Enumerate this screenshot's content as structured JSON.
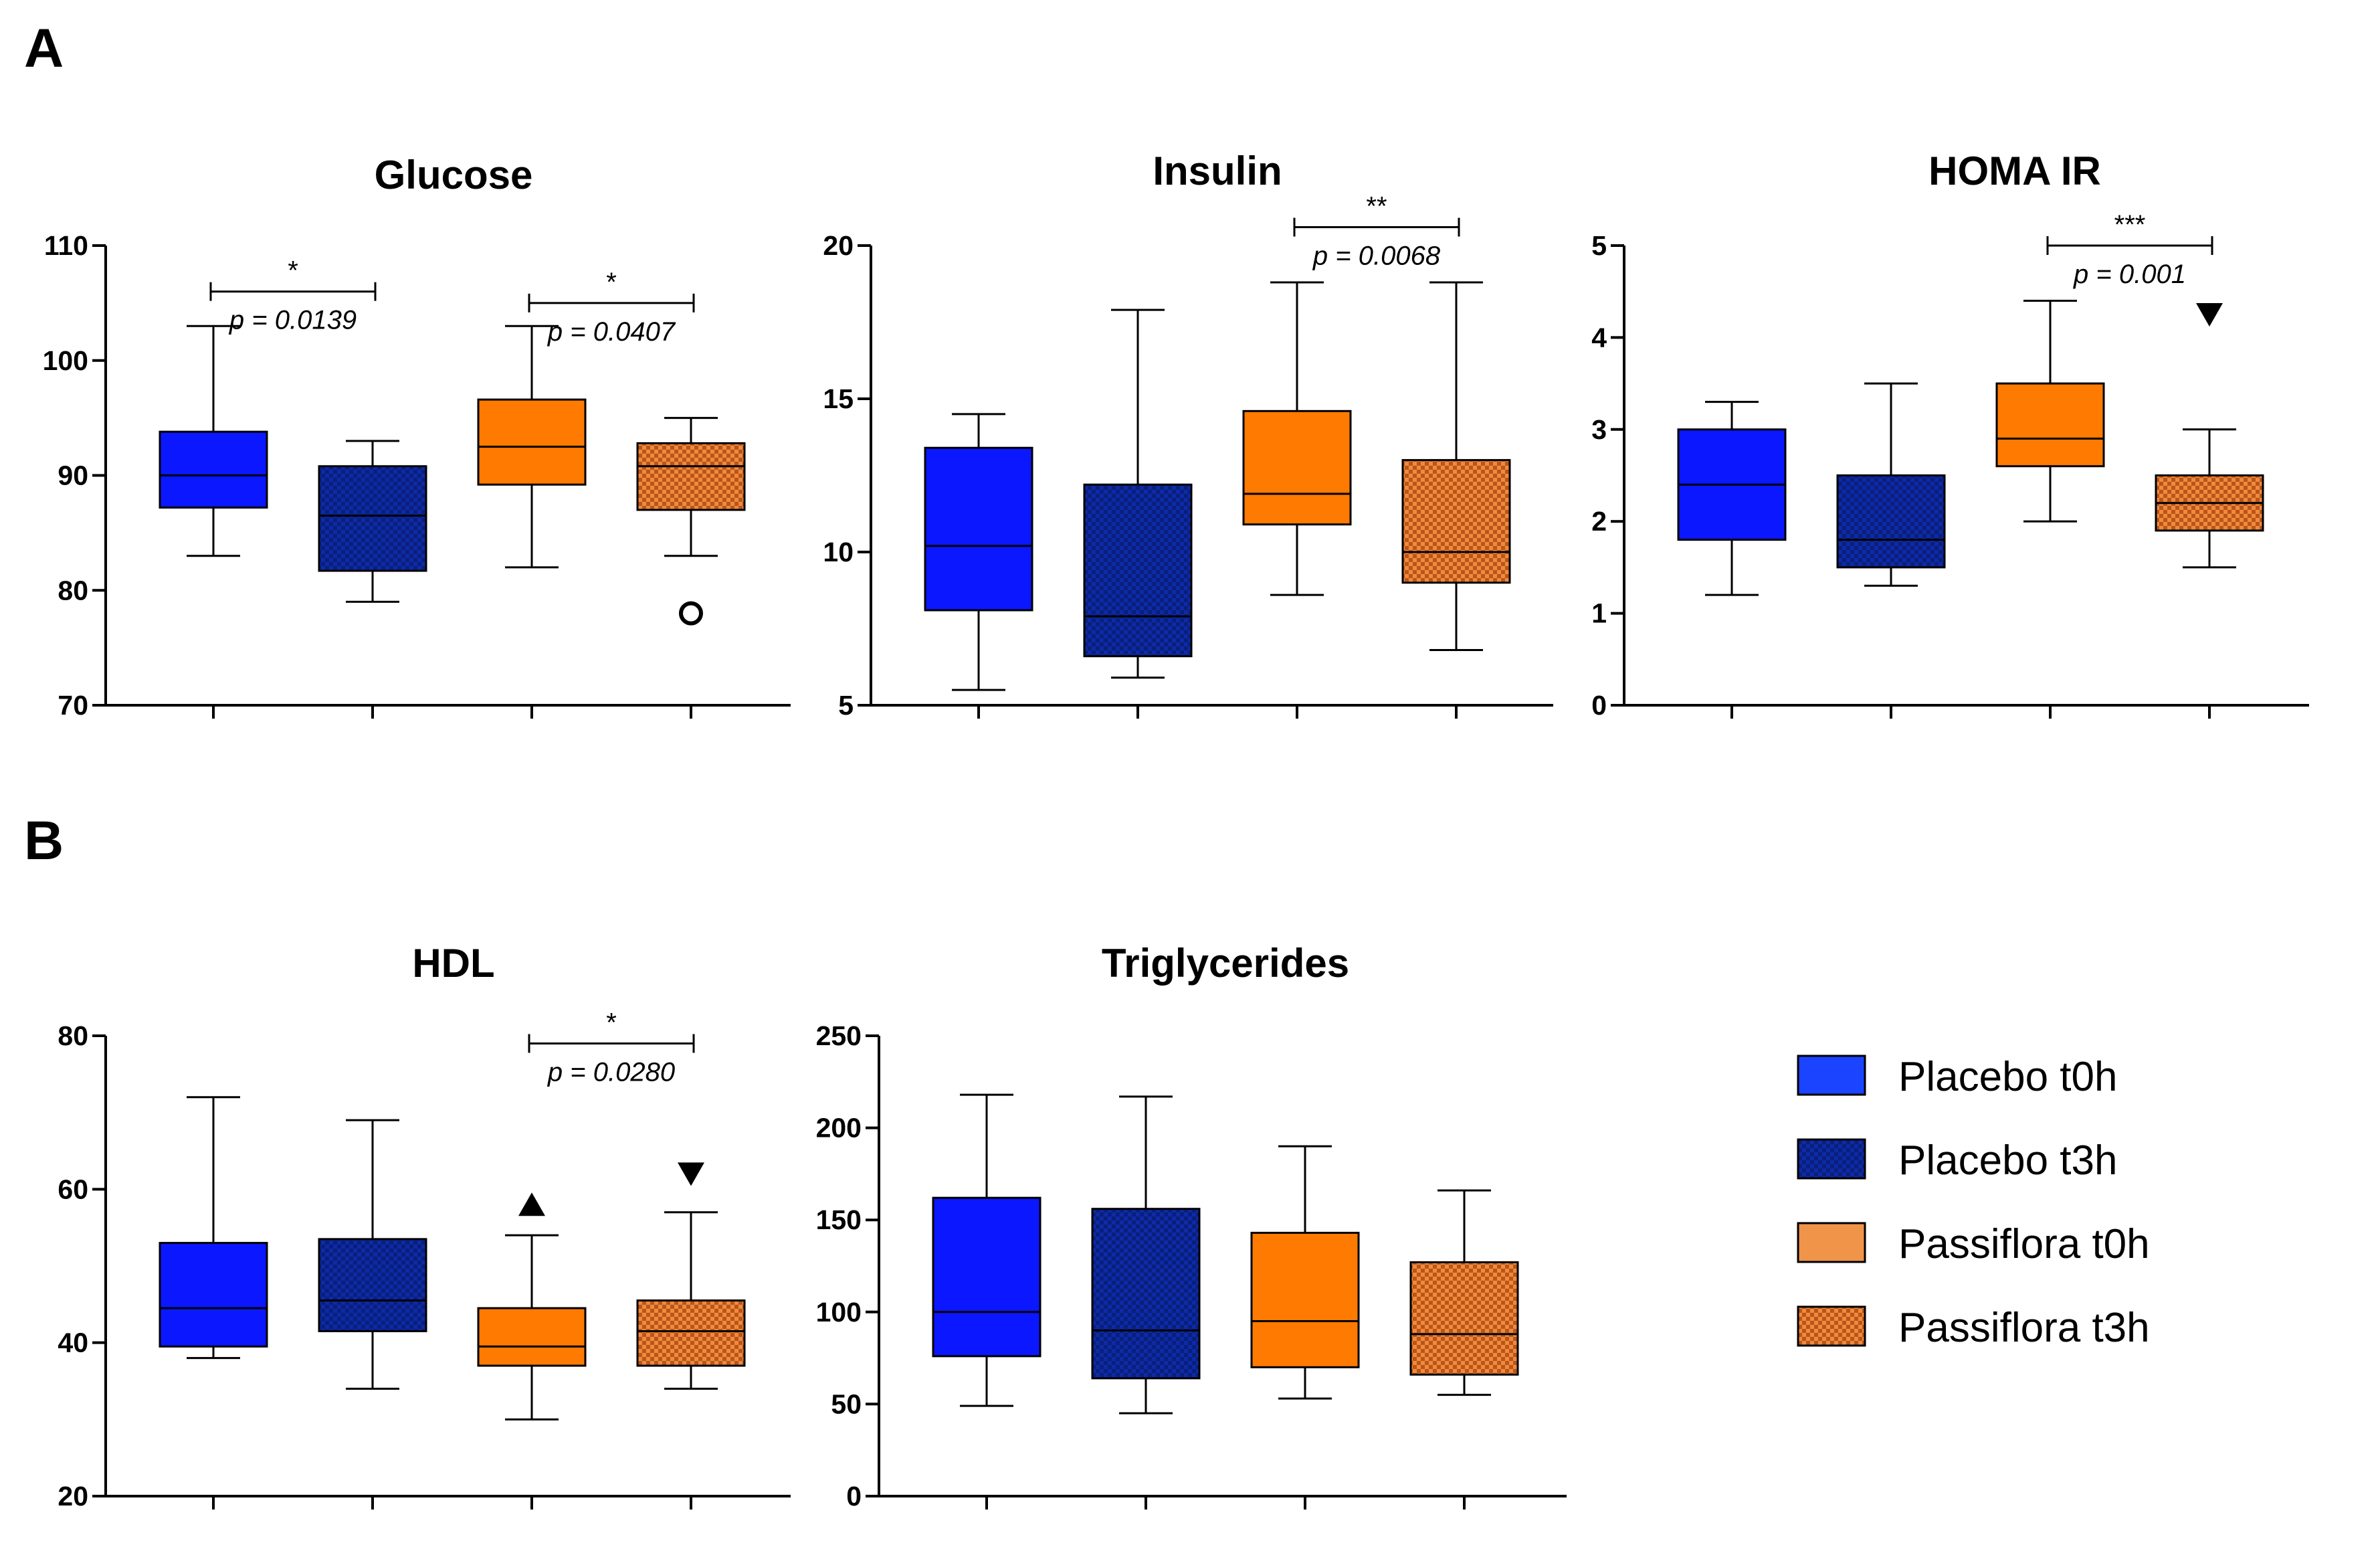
{
  "panels": [
    {
      "letter": "A"
    },
    {
      "letter": "B"
    }
  ],
  "legend": {
    "items": [
      {
        "label": "Placebo t0h",
        "color": "#1a44ff",
        "pattern": "solid"
      },
      {
        "label": "Placebo t3h",
        "color": "#0d2aa8",
        "pattern": "checker"
      },
      {
        "label": "Passiflora t0h",
        "color": "#f0944a",
        "pattern": "solid"
      },
      {
        "label": "Passiflora t3h",
        "color": "#e86f1c",
        "pattern": "checker"
      }
    ]
  },
  "chart_data": [
    {
      "type": "box",
      "title": "Glucose",
      "ylim": [
        70,
        110
      ],
      "yticks": [
        70,
        80,
        90,
        100,
        110
      ],
      "series": [
        {
          "name": "Placebo t0h",
          "min": 83,
          "q1": 87.2,
          "median": 90,
          "q3": 93.8,
          "max": 103,
          "outliers": []
        },
        {
          "name": "Placebo t3h",
          "min": 79,
          "q1": 81.7,
          "median": 86.5,
          "q3": 90.8,
          "max": 93,
          "outliers": []
        },
        {
          "name": "Passiflora t0h",
          "min": 82,
          "q1": 89.2,
          "median": 92.5,
          "q3": 96.6,
          "max": 103,
          "outliers": []
        },
        {
          "name": "Passiflora t3h",
          "min": 83,
          "q1": 87,
          "median": 90.8,
          "q3": 92.8,
          "max": 95,
          "outliers": [
            {
              "value": 78,
              "marker": "circle"
            }
          ]
        }
      ],
      "comparisons": [
        {
          "from": 0,
          "to": 1,
          "at": 106,
          "stars": "*",
          "p": "p = 0.0139"
        },
        {
          "from": 2,
          "to": 3,
          "at": 105,
          "stars": "*",
          "p": "p = 0.0407"
        }
      ]
    },
    {
      "type": "box",
      "title": "Insulin",
      "ylim": [
        5,
        20
      ],
      "yticks": [
        5,
        10,
        15,
        20
      ],
      "series": [
        {
          "name": "Placebo t0h",
          "min": 5.5,
          "q1": 8.1,
          "median": 10.2,
          "q3": 13.4,
          "max": 14.5,
          "outliers": []
        },
        {
          "name": "Placebo t3h",
          "min": 5.9,
          "q1": 6.6,
          "median": 7.9,
          "q3": 12.2,
          "max": 17.9,
          "outliers": []
        },
        {
          "name": "Passiflora t0h",
          "min": 8.6,
          "q1": 10.9,
          "median": 11.9,
          "q3": 14.6,
          "max": 18.8,
          "outliers": []
        },
        {
          "name": "Passiflora t3h",
          "min": 6.8,
          "q1": 9,
          "median": 10,
          "q3": 13,
          "max": 18.8,
          "outliers": []
        }
      ],
      "comparisons": [
        {
          "from": 2,
          "to": 3,
          "at": 20.6,
          "stars": "**",
          "p": "p = 0.0068"
        }
      ]
    },
    {
      "type": "box",
      "title": "HOMA IR",
      "ylim": [
        0,
        5
      ],
      "yticks": [
        0,
        1,
        2,
        3,
        4,
        5
      ],
      "series": [
        {
          "name": "Placebo t0h",
          "min": 1.2,
          "q1": 1.8,
          "median": 2.4,
          "q3": 3.0,
          "max": 3.3,
          "outliers": []
        },
        {
          "name": "Placebo t3h",
          "min": 1.3,
          "q1": 1.5,
          "median": 1.8,
          "q3": 2.5,
          "max": 3.5,
          "outliers": []
        },
        {
          "name": "Passiflora t0h",
          "min": 2.0,
          "q1": 2.6,
          "median": 2.9,
          "q3": 3.5,
          "max": 4.4,
          "outliers": []
        },
        {
          "name": "Passiflora t3h",
          "min": 1.5,
          "q1": 1.9,
          "median": 2.2,
          "q3": 2.5,
          "max": 3.0,
          "outliers": [
            {
              "value": 4.25,
              "marker": "triangle-down"
            }
          ]
        }
      ],
      "comparisons": [
        {
          "from": 2,
          "to": 3,
          "at": 5.0,
          "stars": "***",
          "p": "p = 0.001"
        }
      ]
    },
    {
      "type": "box",
      "title": "HDL",
      "ylim": [
        20,
        80
      ],
      "yticks": [
        20,
        40,
        60,
        80
      ],
      "series": [
        {
          "name": "Placebo t0h",
          "min": 38,
          "q1": 39.5,
          "median": 44.5,
          "q3": 53,
          "max": 72,
          "outliers": []
        },
        {
          "name": "Placebo t3h",
          "min": 34,
          "q1": 41.5,
          "median": 45.5,
          "q3": 53.5,
          "max": 69,
          "outliers": []
        },
        {
          "name": "Passiflora t0h",
          "min": 30,
          "q1": 37,
          "median": 39.5,
          "q3": 44.5,
          "max": 54,
          "outliers": [
            {
              "value": 58,
              "marker": "triangle-up"
            }
          ]
        },
        {
          "name": "Passiflora t3h",
          "min": 34,
          "q1": 37,
          "median": 41.5,
          "q3": 45.5,
          "max": 57,
          "outliers": [
            {
              "value": 62,
              "marker": "triangle-down"
            }
          ]
        }
      ],
      "comparisons": [
        {
          "from": 2,
          "to": 3,
          "at": 79,
          "stars": "*",
          "p": "p = 0.0280"
        }
      ]
    },
    {
      "type": "box",
      "title": "Triglycerides",
      "ylim": [
        0,
        250
      ],
      "yticks": [
        0,
        50,
        100,
        150,
        200,
        250
      ],
      "series": [
        {
          "name": "Placebo t0h",
          "min": 49,
          "q1": 76,
          "median": 100,
          "q3": 162,
          "max": 218,
          "outliers": []
        },
        {
          "name": "Placebo t3h",
          "min": 45,
          "q1": 64,
          "median": 90,
          "q3": 156,
          "max": 217,
          "outliers": []
        },
        {
          "name": "Passiflora t0h",
          "min": 53,
          "q1": 70,
          "median": 95,
          "q3": 143,
          "max": 190,
          "outliers": []
        },
        {
          "name": "Passiflora t3h",
          "min": 55,
          "q1": 66,
          "median": 88,
          "q3": 127,
          "max": 166,
          "outliers": []
        }
      ],
      "comparisons": []
    }
  ]
}
